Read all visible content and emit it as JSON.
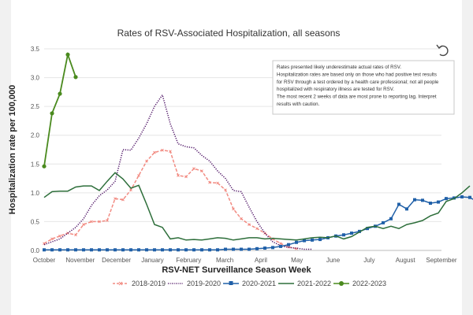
{
  "chart_data": {
    "type": "line",
    "title": "Rates of RSV-Associated Hospitalization, all seasons",
    "xlabel": "RSV-NET Surveillance Season Week",
    "ylabel": "Hospitalization rate per 100,000",
    "ylim": [
      0,
      3.5
    ],
    "yticks": [
      "0.0",
      "0.5",
      "1.0",
      "1.5",
      "2.0",
      "2.5",
      "3.0",
      "3.5"
    ],
    "xticks": [
      "October",
      "November",
      "December",
      "January",
      "February",
      "March",
      "April",
      "May",
      "June",
      "July",
      "August",
      "September"
    ],
    "legend_position": "bottom",
    "annotation": [
      "Rates presented likely underestimate actual rates of RSV.",
      "Hospitalization rates are based only on those who had positive test results",
      "for RSV through a test ordered by a health care professional; not all people",
      "hospitalized with respiratory illness are tested for RSV.",
      "The most recent 2 weeks of data are most prone to reporting lag. Interpret",
      "results with caution."
    ],
    "series": [
      {
        "name": "2018-2019",
        "color": "#f28b82",
        "style": "dash-x",
        "y": [
          0.12,
          0.2,
          0.25,
          0.3,
          0.27,
          0.45,
          0.5,
          0.5,
          0.52,
          0.9,
          0.88,
          1.05,
          1.3,
          1.55,
          1.7,
          1.74,
          1.72,
          1.3,
          1.28,
          1.42,
          1.38,
          1.18,
          1.17,
          1.05,
          0.72,
          0.55,
          0.45,
          0.38,
          0.3,
          0.2,
          0.12,
          0.06,
          0.03
        ]
      },
      {
        "name": "2019-2020",
        "color": "#4b0f63",
        "style": "dotted",
        "y": [
          0.1,
          0.15,
          0.2,
          0.3,
          0.4,
          0.55,
          0.78,
          0.95,
          1.05,
          1.2,
          1.75,
          1.74,
          1.95,
          2.2,
          2.5,
          2.7,
          2.2,
          1.85,
          1.8,
          1.78,
          1.65,
          1.55,
          1.38,
          1.25,
          1.04,
          1.02,
          0.75,
          0.5,
          0.3,
          0.15,
          0.08,
          0.05,
          0.04,
          0.02,
          0.02
        ]
      },
      {
        "name": "2020-2021",
        "color": "#2060a8",
        "style": "square",
        "y": [
          0.01,
          0.01,
          0.01,
          0.01,
          0.01,
          0.01,
          0.01,
          0.01,
          0.01,
          0.01,
          0.01,
          0.01,
          0.01,
          0.01,
          0.01,
          0.01,
          0.01,
          0.01,
          0.01,
          0.01,
          0.01,
          0.01,
          0.01,
          0.02,
          0.02,
          0.02,
          0.02,
          0.03,
          0.04,
          0.05,
          0.07,
          0.1,
          0.14,
          0.17,
          0.18,
          0.19,
          0.22,
          0.25,
          0.27,
          0.3,
          0.33,
          0.38,
          0.42,
          0.48,
          0.55,
          0.8,
          0.72,
          0.88,
          0.87,
          0.82,
          0.84,
          0.9,
          0.91,
          0.93,
          0.92,
          0.84,
          0.82,
          0.96
        ]
      },
      {
        "name": "2021-2022",
        "color": "#2d6e3a",
        "style": "solid",
        "y": [
          0.92,
          1.02,
          1.03,
          1.03,
          1.1,
          1.12,
          1.12,
          1.04,
          1.2,
          1.35,
          1.24,
          1.08,
          1.13,
          0.8,
          0.45,
          0.4,
          0.2,
          0.22,
          0.18,
          0.19,
          0.18,
          0.2,
          0.22,
          0.21,
          0.18,
          0.2,
          0.22,
          0.22,
          0.2,
          0.21,
          0.2,
          0.19,
          0.18,
          0.2,
          0.22,
          0.23,
          0.22,
          0.25,
          0.2,
          0.24,
          0.32,
          0.4,
          0.42,
          0.38,
          0.42,
          0.38,
          0.45,
          0.48,
          0.52,
          0.6,
          0.65,
          0.85,
          0.9,
          1.0,
          1.12
        ]
      },
      {
        "name": "2022-2023",
        "color": "#4a8a1e",
        "style": "dot",
        "y": [
          1.46,
          2.38,
          2.72,
          3.4,
          3.01
        ]
      }
    ]
  }
}
